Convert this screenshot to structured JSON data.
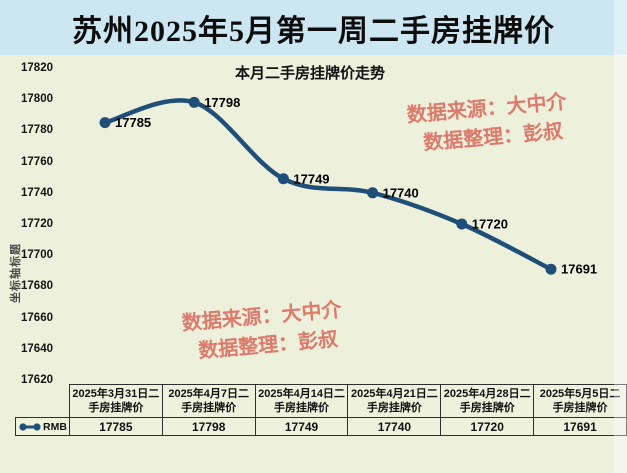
{
  "page": {
    "title": "苏州2025年5月第一周二手房挂牌价",
    "background_color": "#edf0db",
    "titlebar_color": "#cde7f2"
  },
  "chart_data": {
    "type": "line",
    "title": "本月二手房挂牌价走势",
    "ylabel": "坐标轴标题",
    "xlabel": "",
    "categories": [
      "2025年3月31日二手房挂牌价",
      "2025年4月7日二手房挂牌价",
      "2025年4月14日二手房挂牌价",
      "2025年4月21日二手房挂牌价",
      "2025年4月28日二手房挂牌价",
      "2025年5月5日二手房挂牌价"
    ],
    "series": [
      {
        "name": "RMB",
        "values": [
          17785,
          17798,
          17749,
          17740,
          17720,
          17691
        ],
        "color": "#1f4e79"
      }
    ],
    "ylim": [
      17620,
      17820
    ],
    "yticks": [
      17820,
      17800,
      17780,
      17760,
      17740,
      17720,
      17700,
      17680,
      17660,
      17640,
      17620
    ],
    "grid": false,
    "data_labels": true,
    "legend_position": "table-left"
  },
  "watermarks": {
    "source_label": "数据来源：大中介",
    "editor_label": "数据整理：彭叔",
    "color": "#dd7a6c"
  },
  "table": {
    "legend_label": "RMB"
  }
}
